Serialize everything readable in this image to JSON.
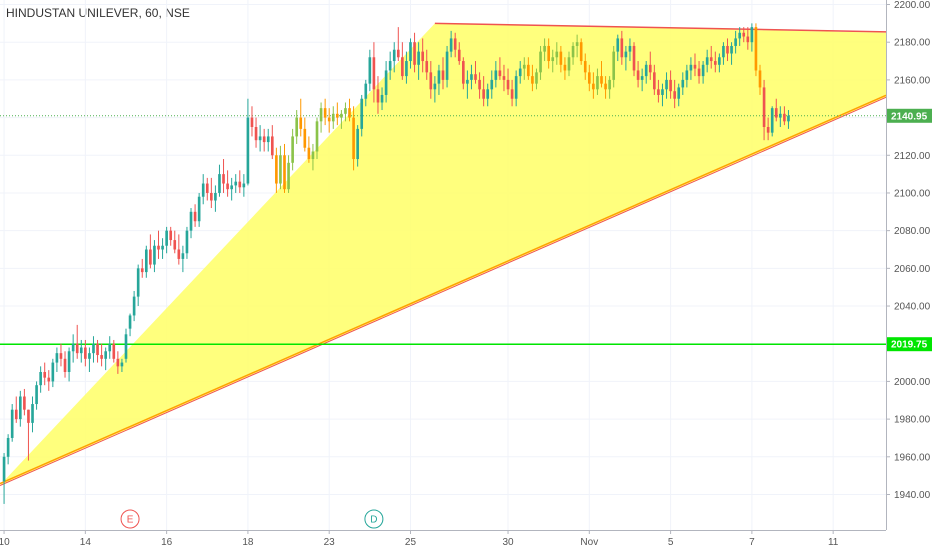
{
  "header": {
    "title": "HINDUSTAN UNILEVER, 60, NSE"
  },
  "chart_data": {
    "type": "candlestick",
    "title": "HINDUSTAN UNILEVER, 60, NSE",
    "ylim": [
      1925,
      2205
    ],
    "yticks": [
      1940,
      1960,
      1980,
      2000,
      2020,
      2040,
      2060,
      2080,
      2100,
      2120,
      2140,
      2160,
      2180,
      2200
    ],
    "x_ticks": [
      {
        "label": "10",
        "x": 0
      },
      {
        "label": "14",
        "x": 20
      },
      {
        "label": "16",
        "x": 40
      },
      {
        "label": "18",
        "x": 60
      },
      {
        "label": "23",
        "x": 80
      },
      {
        "label": "25",
        "x": 100
      },
      {
        "label": "30",
        "x": 124
      },
      {
        "label": "Nov",
        "x": 144
      },
      {
        "label": "5",
        "x": 164
      },
      {
        "label": "7",
        "x": 184
      },
      {
        "label": "11",
        "x": 204
      }
    ],
    "x_range": [
      -1,
      217
    ],
    "last_price": {
      "label": "2140.95",
      "value": 2140.95,
      "color": "#4caf50"
    },
    "support_level": {
      "label": "2019.75",
      "value": 2019.75,
      "color": "#00e600"
    },
    "colors": {
      "up": "#26a69a",
      "down": "#ef5350",
      "highlight_up": "#8bc34a",
      "highlight_down": "#ff9800",
      "pattern_fill": "#ffff66",
      "upper_line": "#ef5350",
      "lower_line": "#ffa000"
    },
    "pattern_triangle": [
      [
        -1,
        1945
      ],
      [
        106,
        2190
      ],
      [
        217,
        2185
      ],
      [
        217,
        2151
      ]
    ],
    "upper_trendline": [
      [
        106,
        2190
      ],
      [
        217,
        2185.5
      ]
    ],
    "lower_trendline": [
      [
        -1,
        1945
      ],
      [
        217,
        2151
      ]
    ],
    "events": [
      {
        "label": "E",
        "x": 31,
        "color": "#ef5350"
      },
      {
        "label": "D",
        "x": 91,
        "color": "#26a69a"
      }
    ],
    "candles": [
      [
        0,
        1947,
        1962,
        1935,
        1960
      ],
      [
        1,
        1960,
        1972,
        1956,
        1970
      ],
      [
        2,
        1970,
        1988,
        1968,
        1985
      ],
      [
        3,
        1985,
        1992,
        1978,
        1980
      ],
      [
        4,
        1980,
        1995,
        1976,
        1992
      ],
      [
        5,
        1992,
        1996,
        1982,
        1985
      ],
      [
        6,
        1985,
        1985,
        1958,
        1978
      ],
      [
        7,
        1978,
        1992,
        1973,
        1988
      ],
      [
        8,
        1988,
        2000,
        1985,
        1998
      ],
      [
        9,
        1998,
        2008,
        1994,
        2005
      ],
      [
        10,
        2005,
        2010,
        1998,
        2002
      ],
      [
        11,
        2002,
        2006,
        1995,
        2000
      ],
      [
        12,
        2000,
        2012,
        1997,
        2010
      ],
      [
        13,
        2010,
        2018,
        2005,
        2015
      ],
      [
        14,
        2015,
        2020,
        2008,
        2012
      ],
      [
        15,
        2012,
        2016,
        2002,
        2005
      ],
      [
        16,
        2005,
        2018,
        2000,
        2016
      ],
      [
        17,
        2016,
        2025,
        2010,
        2020
      ],
      [
        18,
        2020,
        2030,
        2012,
        2015
      ],
      [
        19,
        2015,
        2022,
        2010,
        2018
      ],
      [
        20,
        2018,
        2022,
        2008,
        2012
      ],
      [
        21,
        2012,
        2018,
        2005,
        2015
      ],
      [
        22,
        2015,
        2024,
        2010,
        2020
      ],
      [
        23,
        2020,
        2022,
        2010,
        2014
      ],
      [
        24,
        2014,
        2020,
        2008,
        2012
      ],
      [
        25,
        2012,
        2018,
        2006,
        2016
      ],
      [
        26,
        2016,
        2024,
        2012,
        2020
      ],
      [
        27,
        2020,
        2022,
        2010,
        2012
      ],
      [
        28,
        2012,
        2016,
        2004,
        2008
      ],
      [
        29,
        2008,
        2012,
        2005,
        2010
      ],
      [
        30,
        2012,
        2028,
        2010,
        2025
      ],
      [
        31,
        2028,
        2036,
        2024,
        2035
      ],
      [
        32,
        2035,
        2048,
        2032,
        2045
      ],
      [
        33,
        2045,
        2062,
        2040,
        2060
      ],
      [
        34,
        2060,
        2065,
        2055,
        2058
      ],
      [
        35,
        2058,
        2072,
        2055,
        2070
      ],
      [
        36,
        2070,
        2078,
        2060,
        2062
      ],
      [
        37,
        2062,
        2075,
        2058,
        2072
      ],
      [
        38,
        2072,
        2080,
        2065,
        2070
      ],
      [
        39,
        2070,
        2076,
        2065,
        2072
      ],
      [
        40,
        2072,
        2082,
        2068,
        2080
      ],
      [
        41,
        2080,
        2082,
        2072,
        2075
      ],
      [
        42,
        2075,
        2080,
        2068,
        2070
      ],
      [
        43,
        2070,
        2078,
        2062,
        2065
      ],
      [
        44,
        2065,
        2072,
        2058,
        2068
      ],
      [
        45,
        2068,
        2082,
        2065,
        2080
      ],
      [
        46,
        2080,
        2092,
        2076,
        2090
      ],
      [
        47,
        2090,
        2094,
        2082,
        2085
      ],
      [
        48,
        2085,
        2100,
        2082,
        2098
      ],
      [
        49,
        2098,
        2110,
        2094,
        2105
      ],
      [
        50,
        2105,
        2108,
        2096,
        2100
      ],
      [
        51,
        2100,
        2108,
        2092,
        2096
      ],
      [
        52,
        2096,
        2104,
        2090,
        2100
      ],
      [
        53,
        2100,
        2115,
        2098,
        2110
      ],
      [
        54,
        2110,
        2118,
        2100,
        2105
      ],
      [
        55,
        2105,
        2112,
        2098,
        2102
      ],
      [
        56,
        2102,
        2108,
        2096,
        2104
      ],
      [
        57,
        2104,
        2110,
        2100,
        2106
      ],
      [
        58,
        2106,
        2112,
        2100,
        2103
      ],
      [
        59,
        2103,
        2110,
        2098,
        2105
      ],
      [
        60,
        2105,
        2150,
        2104,
        2140
      ],
      [
        61,
        2140,
        2146,
        2130,
        2135
      ],
      [
        62,
        2135,
        2140,
        2124,
        2128
      ],
      [
        63,
        2128,
        2136,
        2122,
        2130
      ],
      [
        64,
        2130,
        2134,
        2122,
        2127
      ],
      [
        65,
        2127,
        2134,
        2122,
        2130
      ],
      [
        66,
        2130,
        2136,
        2118,
        2120
      ],
      [
        67,
        2120,
        2124,
        2100,
        2105
      ],
      [
        68,
        2105,
        2125,
        2102,
        2120
      ],
      [
        69,
        2120,
        2126,
        2100,
        2102
      ],
      [
        70,
        2102,
        2120,
        2100,
        2116
      ],
      [
        71,
        2116,
        2134,
        2112,
        2130
      ],
      [
        72,
        2130,
        2144,
        2126,
        2140
      ],
      [
        73,
        2140,
        2150,
        2130,
        2134
      ],
      [
        74,
        2134,
        2140,
        2122,
        2124
      ],
      [
        75,
        2124,
        2130,
        2116,
        2118
      ],
      [
        76,
        2118,
        2126,
        2112,
        2122
      ],
      [
        77,
        2122,
        2140,
        2118,
        2138
      ],
      [
        78,
        2138,
        2148,
        2132,
        2145
      ],
      [
        79,
        2145,
        2150,
        2136,
        2140
      ],
      [
        80,
        2140,
        2145,
        2132,
        2138
      ],
      [
        81,
        2138,
        2146,
        2134,
        2142
      ],
      [
        82,
        2142,
        2148,
        2136,
        2140
      ],
      [
        83,
        2140,
        2144,
        2134,
        2142
      ],
      [
        84,
        2142,
        2148,
        2138,
        2145
      ],
      [
        85,
        2145,
        2150,
        2138,
        2140
      ],
      [
        86,
        2140,
        2146,
        2112,
        2118
      ],
      [
        87,
        2118,
        2136,
        2114,
        2134
      ],
      [
        88,
        2134,
        2152,
        2130,
        2150
      ],
      [
        89,
        2150,
        2160,
        2146,
        2158
      ],
      [
        90,
        2158,
        2176,
        2154,
        2172
      ],
      [
        91,
        2172,
        2180,
        2148,
        2155
      ],
      [
        92,
        2155,
        2162,
        2142,
        2148
      ],
      [
        93,
        2148,
        2156,
        2144,
        2152
      ],
      [
        94,
        2152,
        2170,
        2148,
        2165
      ],
      [
        95,
        2165,
        2175,
        2160,
        2170
      ],
      [
        96,
        2170,
        2180,
        2164,
        2176
      ],
      [
        97,
        2176,
        2188,
        2170,
        2172
      ],
      [
        98,
        2172,
        2180,
        2160,
        2162
      ],
      [
        99,
        2162,
        2175,
        2158,
        2170
      ],
      [
        100,
        2170,
        2182,
        2166,
        2180
      ],
      [
        101,
        2180,
        2185,
        2164,
        2168
      ],
      [
        102,
        2168,
        2180,
        2160,
        2175
      ],
      [
        103,
        2175,
        2182,
        2164,
        2170
      ],
      [
        104,
        2170,
        2176,
        2160,
        2164
      ],
      [
        105,
        2164,
        2170,
        2150,
        2155
      ],
      [
        106,
        2155,
        2162,
        2148,
        2158
      ],
      [
        107,
        2158,
        2168,
        2152,
        2165
      ],
      [
        108,
        2165,
        2172,
        2155,
        2160
      ],
      [
        109,
        2160,
        2178,
        2156,
        2175
      ],
      [
        110,
        2175,
        2186,
        2172,
        2182
      ],
      [
        111,
        2182,
        2185,
        2172,
        2176
      ],
      [
        112,
        2176,
        2180,
        2168,
        2170
      ],
      [
        113,
        2170,
        2172,
        2155,
        2158
      ],
      [
        114,
        2158,
        2165,
        2150,
        2160
      ],
      [
        115,
        2160,
        2168,
        2155,
        2163
      ],
      [
        116,
        2163,
        2170,
        2158,
        2160
      ],
      [
        117,
        2160,
        2164,
        2150,
        2155
      ],
      [
        118,
        2155,
        2162,
        2146,
        2150
      ],
      [
        119,
        2150,
        2158,
        2146,
        2155
      ],
      [
        120,
        2155,
        2165,
        2150,
        2160
      ],
      [
        121,
        2160,
        2170,
        2156,
        2165
      ],
      [
        122,
        2165,
        2172,
        2160,
        2162
      ],
      [
        123,
        2162,
        2168,
        2154,
        2160
      ],
      [
        124,
        2160,
        2166,
        2152,
        2155
      ],
      [
        125,
        2155,
        2160,
        2146,
        2150
      ],
      [
        126,
        2150,
        2165,
        2146,
        2162
      ],
      [
        127,
        2162,
        2170,
        2158,
        2166
      ],
      [
        128,
        2166,
        2172,
        2160,
        2168
      ],
      [
        129,
        2168,
        2172,
        2160,
        2162
      ],
      [
        130,
        2162,
        2168,
        2154,
        2158
      ],
      [
        131,
        2158,
        2166,
        2155,
        2164
      ],
      [
        132,
        2164,
        2178,
        2160,
        2175
      ],
      [
        133,
        2175,
        2182,
        2170,
        2178
      ],
      [
        134,
        2178,
        2182,
        2166,
        2170
      ],
      [
        135,
        2170,
        2176,
        2164,
        2172
      ],
      [
        136,
        2172,
        2180,
        2168,
        2175
      ],
      [
        137,
        2175,
        2178,
        2164,
        2168
      ],
      [
        138,
        2168,
        2172,
        2160,
        2165
      ],
      [
        139,
        2165,
        2175,
        2162,
        2172
      ],
      [
        140,
        2172,
        2180,
        2168,
        2178
      ],
      [
        141,
        2178,
        2184,
        2172,
        2180
      ],
      [
        142,
        2180,
        2182,
        2168,
        2170
      ],
      [
        143,
        2170,
        2174,
        2160,
        2164
      ],
      [
        144,
        2164,
        2168,
        2154,
        2158
      ],
      [
        145,
        2158,
        2164,
        2150,
        2155
      ],
      [
        146,
        2155,
        2166,
        2152,
        2162
      ],
      [
        147,
        2162,
        2170,
        2156,
        2158
      ],
      [
        148,
        2158,
        2162,
        2150,
        2155
      ],
      [
        149,
        2155,
        2162,
        2150,
        2160
      ],
      [
        150,
        2160,
        2178,
        2156,
        2175
      ],
      [
        151,
        2175,
        2184,
        2170,
        2182
      ],
      [
        152,
        2182,
        2186,
        2168,
        2172
      ],
      [
        153,
        2172,
        2178,
        2165,
        2175
      ],
      [
        154,
        2175,
        2182,
        2170,
        2178
      ],
      [
        155,
        2178,
        2180,
        2162,
        2165
      ],
      [
        156,
        2165,
        2170,
        2156,
        2160
      ],
      [
        157,
        2160,
        2166,
        2154,
        2162
      ],
      [
        158,
        2162,
        2170,
        2158,
        2168
      ],
      [
        159,
        2168,
        2175,
        2160,
        2164
      ],
      [
        160,
        2164,
        2168,
        2152,
        2155
      ],
      [
        161,
        2155,
        2160,
        2148,
        2152
      ],
      [
        162,
        2152,
        2158,
        2146,
        2155
      ],
      [
        163,
        2155,
        2164,
        2150,
        2160
      ],
      [
        164,
        2160,
        2165,
        2150,
        2154
      ],
      [
        165,
        2154,
        2160,
        2145,
        2150
      ],
      [
        166,
        2150,
        2158,
        2146,
        2156
      ],
      [
        167,
        2156,
        2164,
        2152,
        2160
      ],
      [
        168,
        2160,
        2168,
        2156,
        2165
      ],
      [
        169,
        2165,
        2172,
        2160,
        2168
      ],
      [
        170,
        2168,
        2174,
        2162,
        2166
      ],
      [
        171,
        2166,
        2170,
        2158,
        2162
      ],
      [
        172,
        2162,
        2170,
        2158,
        2168
      ],
      [
        173,
        2168,
        2176,
        2164,
        2172
      ],
      [
        174,
        2172,
        2178,
        2166,
        2170
      ],
      [
        175,
        2170,
        2175,
        2164,
        2168
      ],
      [
        176,
        2168,
        2174,
        2164,
        2172
      ],
      [
        177,
        2172,
        2180,
        2168,
        2178
      ],
      [
        178,
        2178,
        2182,
        2170,
        2174
      ],
      [
        179,
        2174,
        2180,
        2168,
        2178
      ],
      [
        180,
        2178,
        2186,
        2174,
        2182
      ],
      [
        181,
        2182,
        2188,
        2178,
        2185
      ],
      [
        182,
        2185,
        2188,
        2180,
        2183
      ],
      [
        183,
        2183,
        2188,
        2176,
        2180
      ],
      [
        184,
        2180,
        2190,
        2175,
        2188
      ],
      [
        185,
        2188,
        2190,
        2162,
        2165
      ],
      [
        186,
        2165,
        2168,
        2152,
        2156
      ],
      [
        187,
        2156,
        2160,
        2128,
        2135
      ],
      [
        188,
        2135,
        2140,
        2128,
        2132
      ],
      [
        189,
        2132,
        2146,
        2130,
        2145
      ],
      [
        190,
        2145,
        2150,
        2138,
        2140
      ],
      [
        191,
        2140,
        2146,
        2135,
        2142
      ],
      [
        192,
        2142,
        2146,
        2136,
        2138
      ],
      [
        193,
        2138,
        2144,
        2134,
        2141
      ]
    ]
  }
}
